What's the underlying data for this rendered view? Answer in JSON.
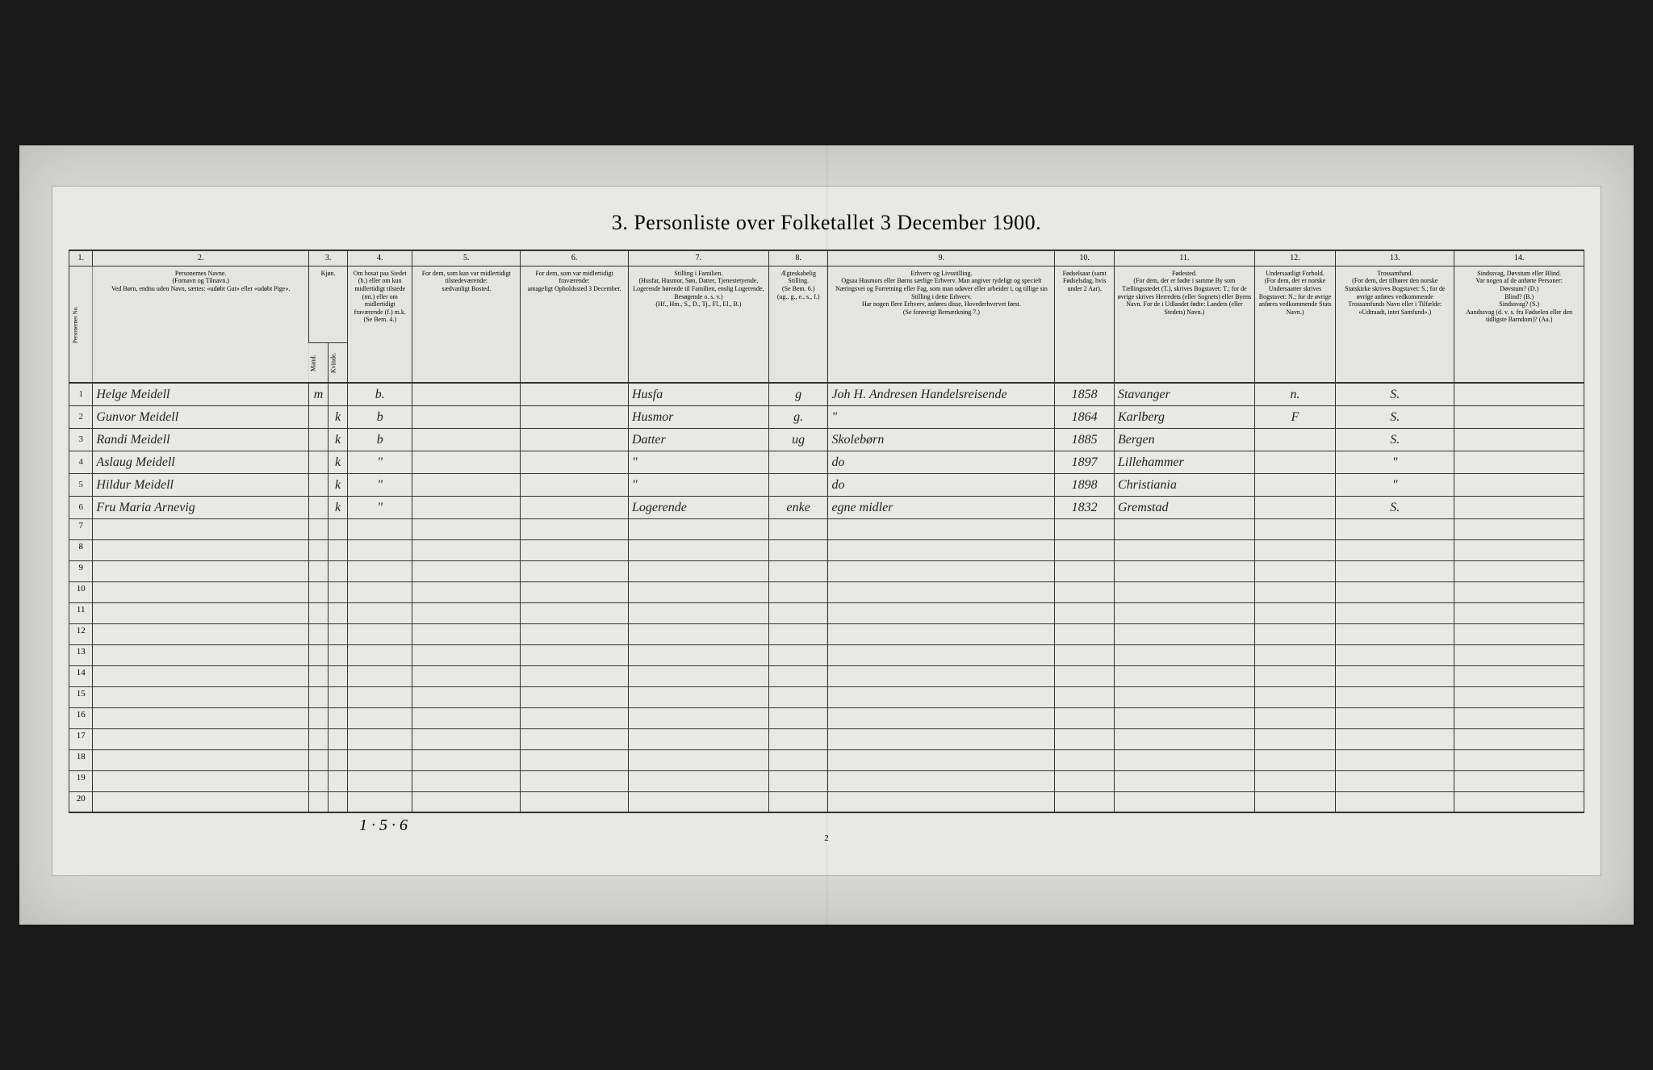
{
  "title": "3. Personliste over Folketallet 3 December 1900.",
  "column_numbers": [
    "1.",
    "2.",
    "3.",
    "4.",
    "5.",
    "6.",
    "7.",
    "8.",
    "9.",
    "10.",
    "11.",
    "12.",
    "13.",
    "14."
  ],
  "headers": {
    "name": "Personernes Navne.\n(Fornavn og Tilnavn.)\nVed Børn, endnu uden Navn, sættes: «udøbt Gut» eller «udøbt Pige».",
    "sex": "Kjøn.",
    "sex_m": "Mand.",
    "sex_k": "Kvinde.",
    "resident": "Om bosat paa Stedet (b.) eller om kun midlertidigt tilstede (mt.) eller om midlertidigt fraværende (f.) m.k. (Se Bem. 4.)",
    "temp_present": "For dem, som kun var midlertidigt tilstedeværende:\nsædvanligt Bosted.",
    "temp_absent": "For dem, som var midlertidigt fraværende:\nantageligt Opholdssted 3 December.",
    "position": "Stilling i Familien.\n(Husfar, Husmor, Søn, Datter, Tjenestetyende, Logerende hørende til Familien, enslig Logerende, Besøgende o. s. v.)\n(Hf., Hm., S., D., Tj., Fl., El., B.)",
    "marital": "Ægteskabelig Stilling.\n(Se Bem. 6.)\n(ug., g., e., s., f.)",
    "occupation": "Erhverv og Livsstilling.\nOgsaa Husmors eller Børns særlige Erhverv. Man angiver tydeligt og specielt Næringsvei og Forretning eller Fag, som man udøver eller arbeider i, og tillige sin Stilling i dette Erhverv.\nHar nogen flere Erhverv, anføres disse, Hovederhvervet først.\n(Se forøvrigt Bemærkning 7.)",
    "birth_year": "Fødselsaar (samt Fødselsdag, hvis under 2 Aar).",
    "birthplace": "Fødested.\n(For dem, der er fødte i samme By som Tællingsstedet (T.), skrives Bogstavet: T.; for de øvrige skrives Herredets (eller Sognets) eller Byens Navn. For de i Udlandet fødte: Landets (eller Stedets) Navn.)",
    "subject": "Undersaatligt Forhold.\n(For dem, der er norske Undersaatter skrives Bogstavet: N.; for de øvrige anføres vedkommende Stats Navn.)",
    "religion": "Trossamfund.\n(For dem, der tilhører den norske Statskirke skrives Bogstavet: S.; for de øvrige anføres vedkommende Trossamfunds Navn eller i Tilfælde: «Udtraadt, intet Samfund».)",
    "disability": "Sindssvag, Døvstum eller Blind.\nVar nogen af de anførte Personer:\nDøvstum? (D.)\nBlind? (B.)\nSindssvag? (S.)\nAandssvag (d. v. s. fra Fødselen eller den tidligste Barndom)? (Aa.)"
  },
  "rows": [
    {
      "num": "1",
      "name": "Helge Meidell",
      "sex_m": "m",
      "sex_k": "",
      "resident": "b.",
      "temp_pres": "",
      "temp_abs": "",
      "position": "Husfa",
      "marital": "g",
      "occupation": "Joh H. Andresen Handelsreisende",
      "birth": "1858",
      "birthplace": "Stavanger",
      "subject": "n.",
      "religion": "S.",
      "disability": ""
    },
    {
      "num": "2",
      "name": "Gunvor Meidell",
      "sex_m": "",
      "sex_k": "k",
      "resident": "b",
      "temp_pres": "",
      "temp_abs": "",
      "position": "Husmor",
      "marital": "g.",
      "occupation": "\"",
      "birth": "1864",
      "birthplace": "Karlberg",
      "subject": "F",
      "religion": "S.",
      "disability": ""
    },
    {
      "num": "3",
      "name": "Randi Meidell",
      "sex_m": "",
      "sex_k": "k",
      "resident": "b",
      "temp_pres": "",
      "temp_abs": "",
      "position": "Datter",
      "marital": "ug",
      "occupation": "Skolebørn",
      "birth": "1885",
      "birthplace": "Bergen",
      "subject": "",
      "religion": "S.",
      "disability": ""
    },
    {
      "num": "4",
      "name": "Aslaug Meidell",
      "sex_m": "",
      "sex_k": "k",
      "resident": "\"",
      "temp_pres": "",
      "temp_abs": "",
      "position": "\"",
      "marital": "",
      "occupation": "do",
      "birth": "1897",
      "birthplace": "Lillehammer",
      "subject": "",
      "religion": "\"",
      "disability": ""
    },
    {
      "num": "5",
      "name": "Hildur Meidell",
      "sex_m": "",
      "sex_k": "k",
      "resident": "\"",
      "temp_pres": "",
      "temp_abs": "",
      "position": "\"",
      "marital": "",
      "occupation": "do",
      "birth": "1898",
      "birthplace": "Christiania",
      "subject": "",
      "religion": "\"",
      "disability": ""
    },
    {
      "num": "6",
      "name": "Fru Maria Arnevig",
      "sex_m": "",
      "sex_k": "k",
      "resident": "\"",
      "temp_pres": "",
      "temp_abs": "",
      "position": "Logerende",
      "marital": "enke",
      "occupation": "egne midler",
      "birth": "1832",
      "birthplace": "Gremstad",
      "subject": "",
      "religion": "S.",
      "disability": ""
    }
  ],
  "empty_rows": [
    "7",
    "8",
    "9",
    "10",
    "11",
    "12",
    "13",
    "14",
    "15",
    "16",
    "17",
    "18",
    "19",
    "20"
  ],
  "footer_note": "1 · 5 · 6",
  "page_number": "2"
}
